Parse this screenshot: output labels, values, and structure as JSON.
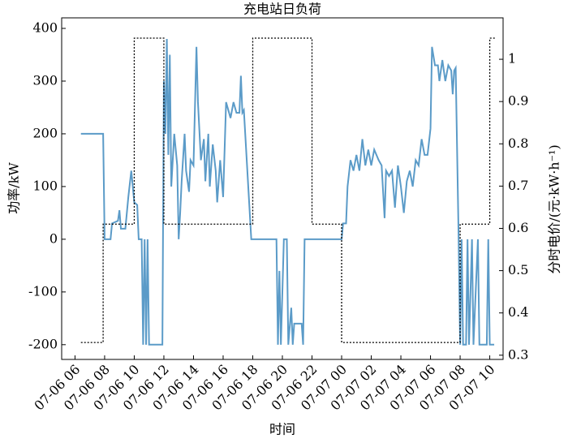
{
  "chart_data": {
    "type": "line",
    "title": "充电站日负荷",
    "xlabel": "时间",
    "ylabel": "功率/kW",
    "y2label": "分时电价/(元·kW·h⁻¹)",
    "xlim": [
      5.1,
      34.9
    ],
    "ylim": [
      -228,
      420
    ],
    "y2lim": [
      0.29,
      1.098
    ],
    "xticks": [
      {
        "value": 6,
        "label": "07-06 06"
      },
      {
        "value": 8,
        "label": "07-06 08"
      },
      {
        "value": 10,
        "label": "07-06 10"
      },
      {
        "value": 12,
        "label": "07-06 12"
      },
      {
        "value": 14,
        "label": "07-06 14"
      },
      {
        "value": 16,
        "label": "07-06 16"
      },
      {
        "value": 18,
        "label": "07-06 18"
      },
      {
        "value": 20,
        "label": "07-06 20"
      },
      {
        "value": 22,
        "label": "07-06 22"
      },
      {
        "value": 24,
        "label": "07-07 00"
      },
      {
        "value": 26,
        "label": "07-07 02"
      },
      {
        "value": 28,
        "label": "07-07 04"
      },
      {
        "value": 30,
        "label": "07-07 06"
      },
      {
        "value": 32,
        "label": "07-07 08"
      },
      {
        "value": 34,
        "label": "07-07 10"
      }
    ],
    "yticks": [
      -200,
      -100,
      0,
      100,
      200,
      300,
      400
    ],
    "y2ticks": [
      0.3,
      0.4,
      0.5,
      0.6,
      0.7,
      0.8,
      0.9,
      1.0
    ],
    "series": [
      {
        "color": "#5b9bc8",
        "x": [
          6.4,
          7.9,
          8.0,
          8.4,
          8.5,
          8.9,
          9.0,
          9.1,
          9.4,
          9.6,
          9.8,
          10.0,
          10.2,
          10.3,
          10.5,
          10.6,
          10.7,
          10.8,
          10.9,
          11.0,
          11.5,
          11.9,
          12.0,
          12.1,
          12.2,
          12.3,
          12.4,
          12.5,
          12.7,
          12.9,
          13.0,
          13.1,
          13.2,
          13.4,
          13.5,
          13.7,
          13.8,
          14.0,
          14.2,
          14.3,
          14.5,
          14.7,
          14.8,
          15.0,
          15.1,
          15.3,
          15.5,
          15.6,
          15.8,
          16.0,
          16.2,
          16.5,
          16.7,
          16.9,
          17.1,
          17.2,
          17.3,
          17.4,
          17.9,
          19.6,
          19.7,
          19.8,
          19.9,
          20.1,
          20.3,
          20.4,
          20.6,
          20.7,
          20.8,
          21.3,
          21.4,
          21.5,
          24.0,
          24.1,
          24.3,
          24.4,
          24.6,
          24.8,
          25.0,
          25.2,
          25.4,
          25.6,
          25.8,
          26.0,
          26.2,
          26.5,
          26.7,
          26.9,
          27.0,
          27.2,
          27.4,
          27.6,
          27.8,
          28.0,
          28.2,
          28.4,
          28.6,
          28.8,
          29.0,
          29.2,
          29.4,
          29.6,
          29.8,
          30.0,
          30.1,
          30.3,
          30.5,
          30.6,
          30.8,
          31.0,
          31.2,
          31.4,
          31.5,
          31.6,
          31.7,
          31.9,
          32.0,
          32.1,
          32.2,
          32.4,
          32.5,
          32.6,
          32.8,
          32.9,
          33.2,
          33.3,
          33.8,
          33.9,
          34.0,
          34.3
        ],
        "values": [
          200,
          200,
          0,
          0,
          30,
          35,
          55,
          20,
          20,
          80,
          130,
          70,
          65,
          0,
          0,
          -200,
          0,
          -200,
          0,
          -200,
          -200,
          -200,
          300,
          200,
          380,
          160,
          350,
          100,
          200,
          140,
          0,
          50,
          110,
          200,
          130,
          90,
          150,
          140,
          365,
          260,
          150,
          190,
          110,
          200,
          100,
          180,
          130,
          70,
          150,
          80,
          260,
          230,
          260,
          240,
          240,
          310,
          240,
          245,
          0,
          0,
          -200,
          -60,
          -200,
          0,
          0,
          -200,
          -130,
          -200,
          -160,
          -160,
          -200,
          0,
          0,
          30,
          30,
          100,
          150,
          130,
          160,
          130,
          190,
          140,
          170,
          140,
          170,
          150,
          140,
          40,
          130,
          120,
          130,
          60,
          140,
          100,
          50,
          110,
          130,
          100,
          150,
          140,
          190,
          160,
          160,
          210,
          365,
          330,
          330,
          300,
          340,
          300,
          330,
          320,
          275,
          320,
          325,
          0,
          -200,
          0,
          -200,
          -200,
          0,
          -200,
          0,
          -200,
          0,
          -200,
          -200,
          0,
          -200,
          -200
        ]
      },
      {
        "color": "#000000",
        "dashed": true,
        "axis": "y2",
        "x": [
          6.4,
          7.9,
          7.9,
          10,
          10,
          12,
          12,
          18,
          18,
          22,
          22,
          24,
          24,
          32,
          32,
          34,
          34,
          34.4
        ],
        "values": [
          0.33,
          0.33,
          0.61,
          0.61,
          1.05,
          1.05,
          0.61,
          0.61,
          1.05,
          1.05,
          0.61,
          0.61,
          0.33,
          0.33,
          0.61,
          0.61,
          1.05,
          1.05
        ]
      }
    ]
  }
}
